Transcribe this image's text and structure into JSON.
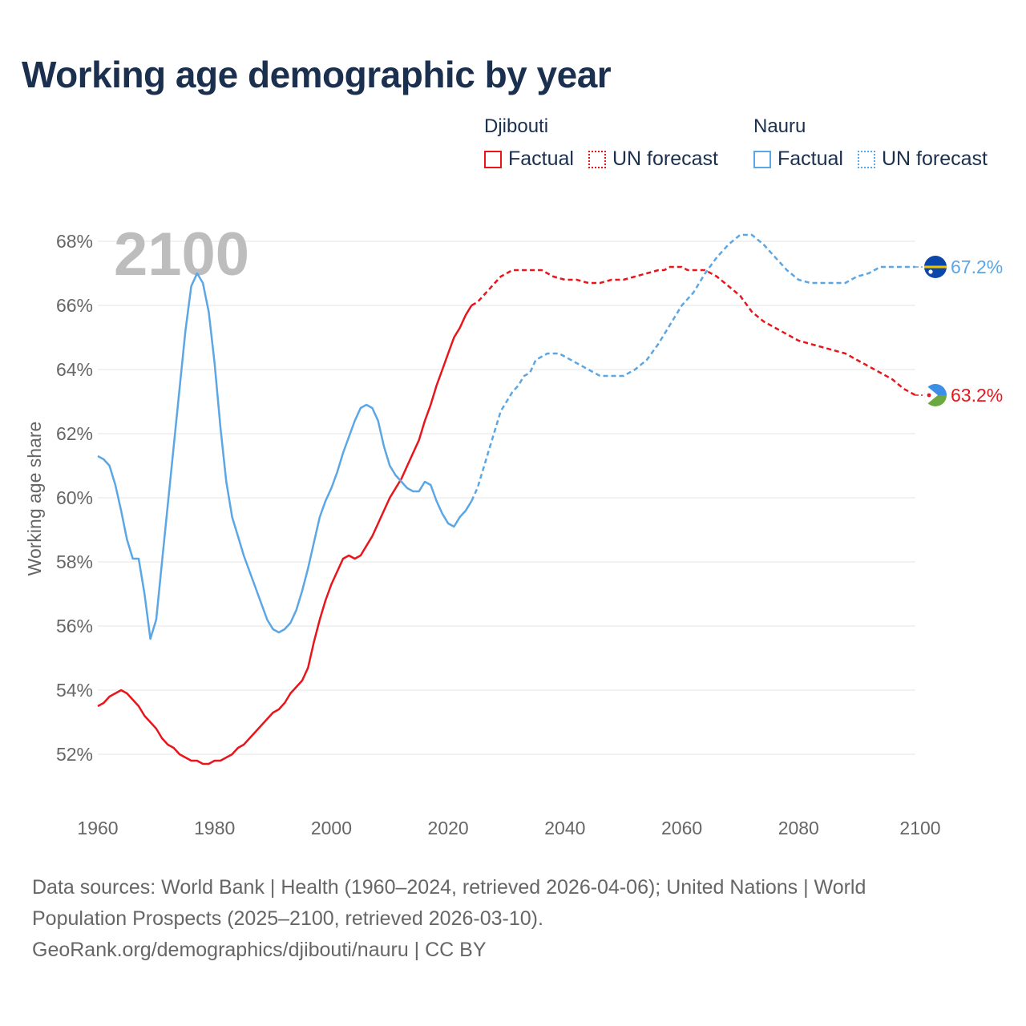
{
  "title": "Working age demographic by year",
  "legend": {
    "groups": [
      {
        "country": "Djibouti",
        "color": "#e8151b",
        "factual_label": "Factual",
        "forecast_label": "UN forecast"
      },
      {
        "country": "Nauru",
        "color": "#5ba6e4",
        "factual_label": "Factual",
        "forecast_label": "UN forecast"
      }
    ]
  },
  "footer": {
    "line1": "Data sources: World Bank | Health (1960–2024, retrieved 2026-04-06); United Nations | World",
    "line2": "Population Prospects (2025–2100, retrieved 2026-03-10).",
    "line3": "GeoRank.org/demographics/djibouti/nauru | CC BY"
  },
  "chart_data": {
    "type": "line",
    "title": "Working age demographic by year",
    "ylabel": "Working age share",
    "xlabel": "",
    "year_watermark": "2100",
    "xlim": [
      1960,
      2100
    ],
    "ylim": [
      51,
      69
    ],
    "xticks": [
      1960,
      1980,
      2000,
      2020,
      2040,
      2060,
      2080,
      2100
    ],
    "yticks": [
      52,
      54,
      56,
      58,
      60,
      62,
      64,
      66,
      68
    ],
    "x_tick_labels": [
      "1960",
      "1980",
      "2000",
      "2020",
      "2040",
      "2060",
      "2080",
      "2100"
    ],
    "y_tick_labels": [
      "52%",
      "54%",
      "56%",
      "58%",
      "60%",
      "62%",
      "64%",
      "66%",
      "68%"
    ],
    "series": [
      {
        "name": "Djibouti",
        "color": "#e8151b",
        "end_label": "63.2%",
        "flag_colors": {
          "top": "#3d8ee6",
          "bottom": "#6aa842",
          "triangle": "#ffffff",
          "star": "#e8151b"
        },
        "factual": [
          [
            1960,
            53.5
          ],
          [
            1961,
            53.6
          ],
          [
            1962,
            53.8
          ],
          [
            1963,
            53.9
          ],
          [
            1964,
            54.0
          ],
          [
            1965,
            53.9
          ],
          [
            1966,
            53.7
          ],
          [
            1967,
            53.5
          ],
          [
            1968,
            53.2
          ],
          [
            1969,
            53.0
          ],
          [
            1970,
            52.8
          ],
          [
            1971,
            52.5
          ],
          [
            1972,
            52.3
          ],
          [
            1973,
            52.2
          ],
          [
            1974,
            52.0
          ],
          [
            1975,
            51.9
          ],
          [
            1976,
            51.8
          ],
          [
            1977,
            51.8
          ],
          [
            1978,
            51.7
          ],
          [
            1979,
            51.7
          ],
          [
            1980,
            51.8
          ],
          [
            1981,
            51.8
          ],
          [
            1982,
            51.9
          ],
          [
            1983,
            52.0
          ],
          [
            1984,
            52.2
          ],
          [
            1985,
            52.3
          ],
          [
            1986,
            52.5
          ],
          [
            1987,
            52.7
          ],
          [
            1988,
            52.9
          ],
          [
            1989,
            53.1
          ],
          [
            1990,
            53.3
          ],
          [
            1991,
            53.4
          ],
          [
            1992,
            53.6
          ],
          [
            1993,
            53.9
          ],
          [
            1994,
            54.1
          ],
          [
            1995,
            54.3
          ],
          [
            1996,
            54.7
          ],
          [
            1997,
            55.5
          ],
          [
            1998,
            56.2
          ],
          [
            1999,
            56.8
          ],
          [
            2000,
            57.3
          ],
          [
            2001,
            57.7
          ],
          [
            2002,
            58.1
          ],
          [
            2003,
            58.2
          ],
          [
            2004,
            58.1
          ],
          [
            2005,
            58.2
          ],
          [
            2006,
            58.5
          ],
          [
            2007,
            58.8
          ],
          [
            2008,
            59.2
          ],
          [
            2009,
            59.6
          ],
          [
            2010,
            60.0
          ],
          [
            2011,
            60.3
          ],
          [
            2012,
            60.6
          ],
          [
            2013,
            61.0
          ],
          [
            2014,
            61.4
          ],
          [
            2015,
            61.8
          ],
          [
            2016,
            62.4
          ],
          [
            2017,
            62.9
          ],
          [
            2018,
            63.5
          ],
          [
            2019,
            64.0
          ],
          [
            2020,
            64.5
          ],
          [
            2021,
            65.0
          ],
          [
            2022,
            65.3
          ],
          [
            2023,
            65.7
          ],
          [
            2024,
            66.0
          ]
        ],
        "forecast": [
          [
            2024,
            66.0
          ],
          [
            2025,
            66.1
          ],
          [
            2026,
            66.3
          ],
          [
            2027,
            66.5
          ],
          [
            2028,
            66.7
          ],
          [
            2029,
            66.9
          ],
          [
            2030,
            67.0
          ],
          [
            2031,
            67.1
          ],
          [
            2032,
            67.1
          ],
          [
            2034,
            67.1
          ],
          [
            2036,
            67.1
          ],
          [
            2037,
            67.0
          ],
          [
            2038,
            66.9
          ],
          [
            2040,
            66.8
          ],
          [
            2042,
            66.8
          ],
          [
            2044,
            66.7
          ],
          [
            2046,
            66.7
          ],
          [
            2048,
            66.8
          ],
          [
            2050,
            66.8
          ],
          [
            2052,
            66.9
          ],
          [
            2054,
            67.0
          ],
          [
            2056,
            67.1
          ],
          [
            2057,
            67.1
          ],
          [
            2058,
            67.2
          ],
          [
            2060,
            67.2
          ],
          [
            2061,
            67.1
          ],
          [
            2064,
            67.1
          ],
          [
            2066,
            66.9
          ],
          [
            2068,
            66.6
          ],
          [
            2070,
            66.3
          ],
          [
            2072,
            65.8
          ],
          [
            2074,
            65.5
          ],
          [
            2076,
            65.3
          ],
          [
            2078,
            65.1
          ],
          [
            2080,
            64.9
          ],
          [
            2082,
            64.8
          ],
          [
            2084,
            64.7
          ],
          [
            2086,
            64.6
          ],
          [
            2088,
            64.5
          ],
          [
            2090,
            64.3
          ],
          [
            2092,
            64.1
          ],
          [
            2094,
            63.9
          ],
          [
            2096,
            63.7
          ],
          [
            2098,
            63.4
          ],
          [
            2100,
            63.2
          ]
        ]
      },
      {
        "name": "Nauru",
        "color": "#5ba6e4",
        "end_label": "67.2%",
        "flag_colors": {
          "field": "#0b47a8",
          "stripe": "#f5c400",
          "star": "#ffffff"
        },
        "factual": [
          [
            1960,
            61.3
          ],
          [
            1961,
            61.2
          ],
          [
            1962,
            61.0
          ],
          [
            1963,
            60.4
          ],
          [
            1964,
            59.6
          ],
          [
            1965,
            58.7
          ],
          [
            1966,
            58.1
          ],
          [
            1967,
            58.1
          ],
          [
            1968,
            57.0
          ],
          [
            1969,
            55.6
          ],
          [
            1970,
            56.2
          ],
          [
            1971,
            58.0
          ],
          [
            1972,
            59.8
          ],
          [
            1973,
            61.6
          ],
          [
            1974,
            63.4
          ],
          [
            1975,
            65.2
          ],
          [
            1976,
            66.6
          ],
          [
            1977,
            67.0
          ],
          [
            1978,
            66.7
          ],
          [
            1979,
            65.8
          ],
          [
            1980,
            64.2
          ],
          [
            1981,
            62.2
          ],
          [
            1982,
            60.5
          ],
          [
            1983,
            59.4
          ],
          [
            1984,
            58.8
          ],
          [
            1985,
            58.2
          ],
          [
            1986,
            57.7
          ],
          [
            1987,
            57.2
          ],
          [
            1988,
            56.7
          ],
          [
            1989,
            56.2
          ],
          [
            1990,
            55.9
          ],
          [
            1991,
            55.8
          ],
          [
            1992,
            55.9
          ],
          [
            1993,
            56.1
          ],
          [
            1994,
            56.5
          ],
          [
            1995,
            57.1
          ],
          [
            1996,
            57.8
          ],
          [
            1997,
            58.6
          ],
          [
            1998,
            59.4
          ],
          [
            1999,
            59.9
          ],
          [
            2000,
            60.3
          ],
          [
            2001,
            60.8
          ],
          [
            2002,
            61.4
          ],
          [
            2003,
            61.9
          ],
          [
            2004,
            62.4
          ],
          [
            2005,
            62.8
          ],
          [
            2006,
            62.9
          ],
          [
            2007,
            62.8
          ],
          [
            2008,
            62.4
          ],
          [
            2009,
            61.6
          ],
          [
            2010,
            61.0
          ],
          [
            2011,
            60.7
          ],
          [
            2012,
            60.5
          ],
          [
            2013,
            60.3
          ],
          [
            2014,
            60.2
          ],
          [
            2015,
            60.2
          ],
          [
            2016,
            60.5
          ],
          [
            2017,
            60.4
          ],
          [
            2018,
            59.9
          ],
          [
            2019,
            59.5
          ],
          [
            2020,
            59.2
          ],
          [
            2021,
            59.1
          ],
          [
            2022,
            59.4
          ],
          [
            2023,
            59.6
          ],
          [
            2024,
            59.9
          ]
        ],
        "forecast": [
          [
            2024,
            59.9
          ],
          [
            2025,
            60.3
          ],
          [
            2026,
            60.9
          ],
          [
            2027,
            61.5
          ],
          [
            2028,
            62.1
          ],
          [
            2029,
            62.7
          ],
          [
            2030,
            63.0
          ],
          [
            2031,
            63.3
          ],
          [
            2032,
            63.5
          ],
          [
            2033,
            63.8
          ],
          [
            2034,
            63.9
          ],
          [
            2035,
            64.3
          ],
          [
            2036,
            64.4
          ],
          [
            2037,
            64.5
          ],
          [
            2038,
            64.5
          ],
          [
            2039,
            64.5
          ],
          [
            2040,
            64.4
          ],
          [
            2042,
            64.2
          ],
          [
            2044,
            64.0
          ],
          [
            2046,
            63.8
          ],
          [
            2048,
            63.8
          ],
          [
            2050,
            63.8
          ],
          [
            2052,
            64.0
          ],
          [
            2054,
            64.3
          ],
          [
            2056,
            64.8
          ],
          [
            2058,
            65.4
          ],
          [
            2060,
            66.0
          ],
          [
            2062,
            66.4
          ],
          [
            2064,
            67.0
          ],
          [
            2066,
            67.5
          ],
          [
            2068,
            67.9
          ],
          [
            2070,
            68.2
          ],
          [
            2072,
            68.2
          ],
          [
            2074,
            67.9
          ],
          [
            2076,
            67.5
          ],
          [
            2078,
            67.1
          ],
          [
            2080,
            66.8
          ],
          [
            2082,
            66.7
          ],
          [
            2084,
            66.7
          ],
          [
            2086,
            66.7
          ],
          [
            2088,
            66.7
          ],
          [
            2090,
            66.9
          ],
          [
            2092,
            67.0
          ],
          [
            2094,
            67.2
          ],
          [
            2096,
            67.2
          ],
          [
            2098,
            67.2
          ],
          [
            2100,
            67.2
          ]
        ]
      }
    ]
  }
}
